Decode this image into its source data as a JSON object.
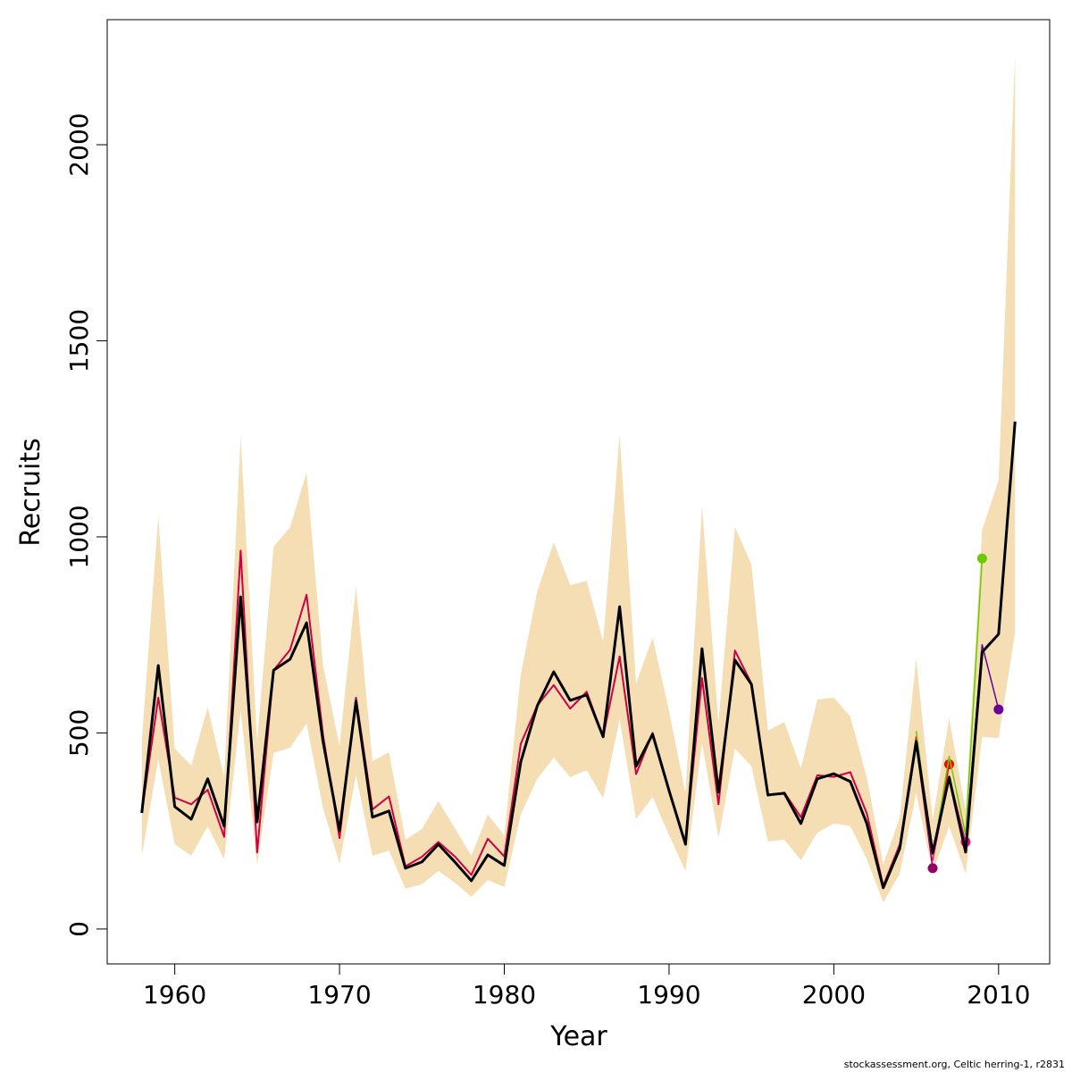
{
  "chart_data": {
    "type": "line",
    "x_label": "Year",
    "y_label": "Recruits",
    "footnote": "stockassessment.org, Celtic  herring-1, r2831",
    "x": [
      1958,
      1959,
      1960,
      1961,
      1962,
      1963,
      1964,
      1965,
      1966,
      1967,
      1968,
      1969,
      1970,
      1971,
      1972,
      1973,
      1974,
      1975,
      1976,
      1977,
      1978,
      1979,
      1980,
      1981,
      1982,
      1983,
      1984,
      1985,
      1986,
      1987,
      1988,
      1989,
      1990,
      1991,
      1992,
      1993,
      1994,
      1995,
      1996,
      1997,
      1998,
      1999,
      2000,
      2001,
      2002,
      2003,
      2004,
      2005,
      2006,
      2007,
      2008,
      2009,
      2010,
      2011
    ],
    "band": {
      "color": "#f5deb3",
      "upper": [
        480,
        1052,
        460,
        417,
        565,
        387,
        1257,
        478,
        975,
        1025,
        1164,
        672,
        467,
        875,
        428,
        451,
        228,
        255,
        326,
        257,
        187,
        292,
        239,
        649,
        861,
        986,
        877,
        888,
        733,
        1260,
        626,
        743,
        556,
        346,
        1080,
        524,
        1025,
        929,
        506,
        528,
        410,
        585,
        590,
        542,
        387,
        164,
        285,
        690,
        278,
        538,
        303,
        1018,
        1144,
        2228
      ],
      "lower": [
        187,
        433,
        216,
        187,
        262,
        178,
        558,
        164,
        449,
        462,
        524,
        308,
        166,
        392,
        187,
        200,
        103,
        114,
        148,
        118,
        82,
        125,
        107,
        292,
        383,
        437,
        387,
        405,
        333,
        535,
        280,
        337,
        239,
        148,
        474,
        232,
        460,
        415,
        223,
        228,
        175,
        246,
        269,
        262,
        178,
        68,
        141,
        346,
        144,
        262,
        141,
        490,
        487,
        756
      ]
    },
    "series": [
      {
        "color": "#cc0044",
        "width": 2,
        "end_point": false,
        "values": [
          296,
          590,
          335,
          318,
          355,
          235,
          965,
          195,
          660,
          712,
          852,
          495,
          232,
          590,
          305,
          338,
          160,
          184,
          222,
          185,
          138,
          230,
          185,
          472,
          570,
          622,
          562,
          605,
          490,
          695,
          395,
          500,
          350,
          218,
          640,
          318,
          710,
          626,
          340,
          348,
          285,
          392,
          388,
          400,
          295,
          110,
          215,
          null,
          null,
          null,
          null,
          null,
          null,
          null
        ]
      },
      {
        "color": "#990066",
        "width": 1.5,
        "end_point": true,
        "values": [
          null,
          null,
          null,
          null,
          null,
          null,
          null,
          null,
          null,
          null,
          null,
          null,
          null,
          null,
          null,
          null,
          null,
          null,
          null,
          null,
          null,
          null,
          null,
          null,
          null,
          null,
          null,
          null,
          null,
          null,
          null,
          null,
          null,
          null,
          null,
          null,
          null,
          null,
          null,
          null,
          null,
          null,
          null,
          null,
          null,
          null,
          210,
          470,
          155,
          null,
          null,
          null,
          null,
          null
        ]
      },
      {
        "color": "#ff0000",
        "width": 1.5,
        "end_point": true,
        "values": [
          null,
          null,
          null,
          null,
          null,
          null,
          null,
          null,
          null,
          null,
          null,
          null,
          null,
          null,
          null,
          null,
          null,
          null,
          null,
          null,
          null,
          null,
          null,
          null,
          null,
          null,
          null,
          null,
          null,
          null,
          null,
          null,
          null,
          null,
          null,
          null,
          null,
          null,
          null,
          null,
          null,
          null,
          null,
          null,
          null,
          null,
          215,
          490,
          180,
          420,
          null,
          null,
          null,
          null
        ]
      },
      {
        "color": "#ff0099",
        "width": 1.5,
        "end_point": true,
        "values": [
          null,
          null,
          null,
          null,
          null,
          null,
          null,
          null,
          null,
          null,
          null,
          null,
          null,
          null,
          null,
          null,
          null,
          null,
          null,
          null,
          null,
          null,
          null,
          null,
          null,
          null,
          null,
          null,
          null,
          null,
          null,
          null,
          null,
          null,
          null,
          null,
          null,
          null,
          null,
          null,
          null,
          null,
          null,
          null,
          null,
          null,
          null,
          480,
          175,
          390,
          222,
          null,
          null,
          null
        ]
      },
      {
        "color": "#66cc00",
        "width": 1.5,
        "end_point": true,
        "values": [
          null,
          null,
          null,
          null,
          null,
          null,
          null,
          null,
          null,
          null,
          null,
          null,
          null,
          null,
          null,
          null,
          null,
          null,
          null,
          null,
          null,
          null,
          null,
          null,
          null,
          null,
          null,
          null,
          null,
          null,
          null,
          null,
          null,
          null,
          null,
          null,
          null,
          null,
          null,
          null,
          null,
          null,
          null,
          null,
          null,
          null,
          null,
          505,
          185,
          440,
          240,
          945,
          null,
          null
        ]
      },
      {
        "color": "#660099",
        "width": 1.5,
        "end_point": true,
        "values": [
          null,
          null,
          null,
          null,
          null,
          null,
          null,
          null,
          null,
          null,
          null,
          null,
          null,
          null,
          null,
          null,
          null,
          null,
          null,
          null,
          null,
          null,
          null,
          null,
          null,
          null,
          null,
          null,
          null,
          null,
          null,
          null,
          null,
          null,
          null,
          null,
          null,
          null,
          null,
          null,
          null,
          null,
          null,
          null,
          null,
          null,
          null,
          null,
          190,
          385,
          210,
          725,
          560,
          null
        ]
      },
      {
        "color": "#000000",
        "width": 3,
        "end_point": false,
        "values": [
          296,
          672,
          312,
          280,
          383,
          262,
          847,
          273,
          660,
          688,
          781,
          478,
          251,
          581,
          285,
          301,
          155,
          171,
          216,
          171,
          123,
          189,
          162,
          426,
          569,
          656,
          583,
          597,
          490,
          822,
          415,
          497,
          353,
          216,
          715,
          349,
          686,
          624,
          342,
          346,
          269,
          383,
          396,
          376,
          269,
          105,
          205,
          478,
          194,
          387,
          196,
          706,
          752,
          1294
        ]
      }
    ],
    "xlim": [
      1955.9,
      2013.1
    ],
    "ylim": [
      -89,
      2319
    ],
    "xticks": [
      1960,
      1970,
      1980,
      1990,
      2000,
      2010
    ],
    "yticks": [
      0,
      500,
      1000,
      1500,
      2000
    ]
  }
}
